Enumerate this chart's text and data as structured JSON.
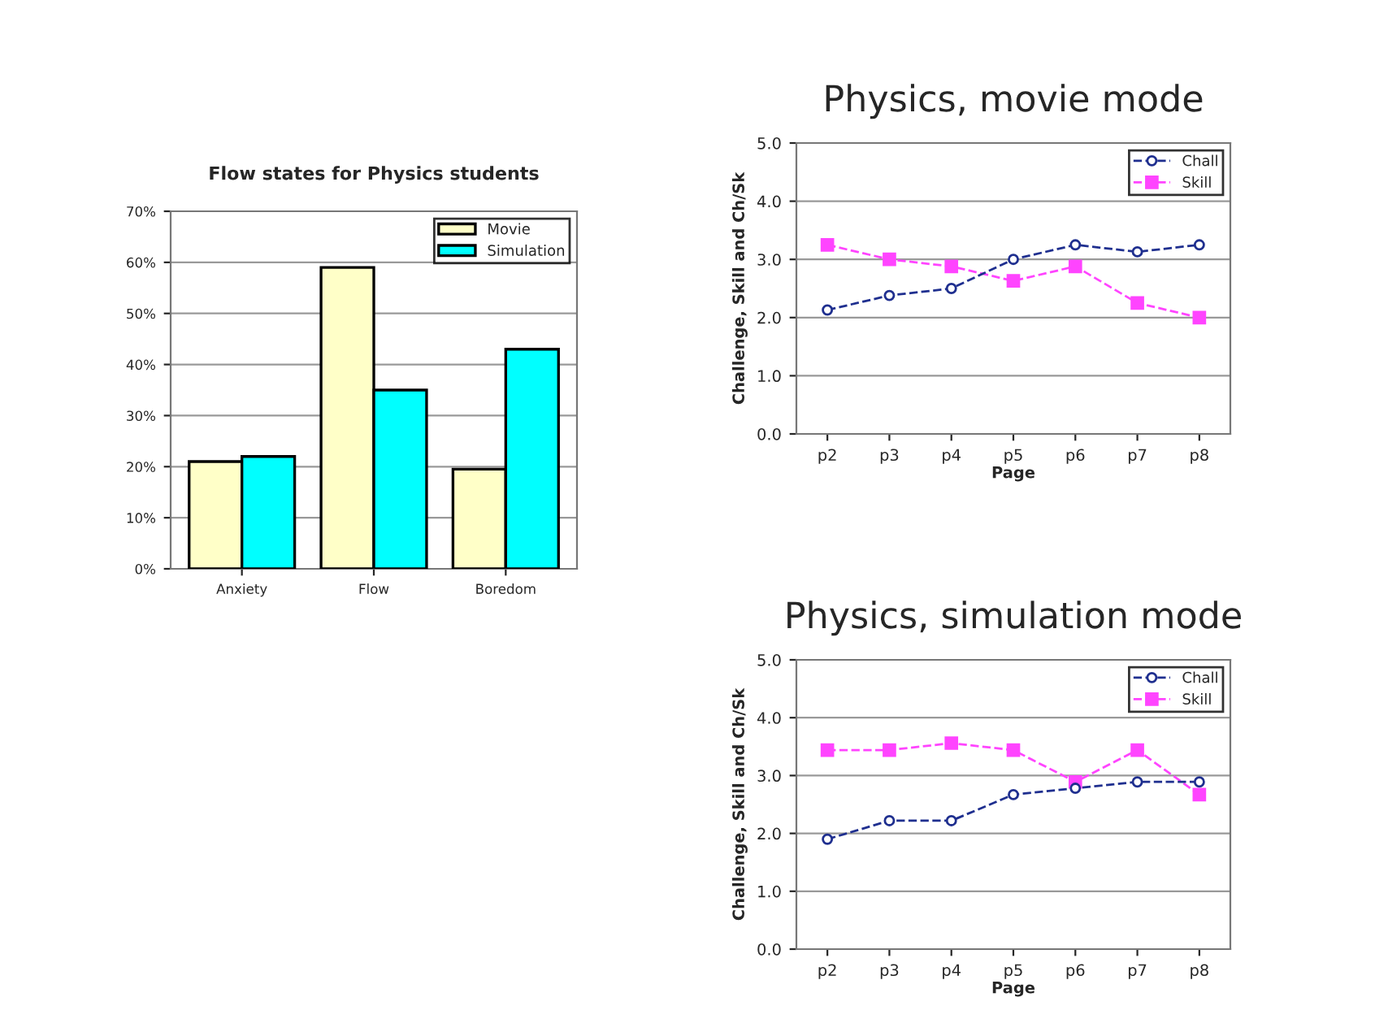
{
  "chart_data": [
    {
      "type": "bar",
      "title": "Flow states for Physics students",
      "categories": [
        "Anxiety",
        "Flow",
        "Boredom"
      ],
      "series": [
        {
          "name": "Movie",
          "color": "#ffffc8",
          "values": [
            21,
            59,
            19.5
          ]
        },
        {
          "name": "Simulation",
          "color": "#00ffff",
          "values": [
            22,
            35,
            43
          ]
        }
      ],
      "ylim": [
        0,
        70
      ],
      "yticks": [
        {
          "value": 0,
          "label": "0%"
        },
        {
          "value": 10,
          "label": "10%"
        },
        {
          "value": 20,
          "label": "20%"
        },
        {
          "value": 30,
          "label": "30%"
        },
        {
          "value": 40,
          "label": "40%"
        },
        {
          "value": 50,
          "label": "50%"
        },
        {
          "value": 60,
          "label": "60%"
        },
        {
          "value": 70,
          "label": "70%"
        }
      ],
      "grid": "y",
      "legend": "top right"
    },
    {
      "type": "line",
      "title": "Physics, movie mode",
      "xlabel": "Page",
      "ylabel": "Challenge, Skill and Ch/Sk",
      "categories": [
        "p2",
        "p3",
        "p4",
        "p5",
        "p6",
        "p7",
        "p8"
      ],
      "series": [
        {
          "name": "Chall",
          "color": "#1f2f8f",
          "marker": "circle",
          "values": [
            2.13,
            2.38,
            2.5,
            3.0,
            3.25,
            3.13,
            3.25
          ]
        },
        {
          "name": "Skill",
          "color": "#ff44ff",
          "marker": "square",
          "values": [
            3.25,
            3.0,
            2.88,
            2.63,
            2.88,
            2.25,
            2.0
          ]
        }
      ],
      "ylim": [
        0,
        5
      ],
      "yticks": [
        {
          "value": 0,
          "label": "0.0"
        },
        {
          "value": 1,
          "label": "1.0"
        },
        {
          "value": 2,
          "label": "2.0"
        },
        {
          "value": 3,
          "label": "3.0"
        },
        {
          "value": 4,
          "label": "4.0"
        },
        {
          "value": 5,
          "label": "5.0"
        }
      ],
      "grid": "y",
      "legend": "top right",
      "line_style": "dashed"
    },
    {
      "type": "line",
      "title": "Physics, simulation mode",
      "xlabel": "Page",
      "ylabel": "Challenge, Skill and Ch/Sk",
      "categories": [
        "p2",
        "p3",
        "p4",
        "p5",
        "p6",
        "p7",
        "p8"
      ],
      "series": [
        {
          "name": "Chall",
          "color": "#1f2f8f",
          "marker": "circle",
          "values": [
            1.9,
            2.22,
            2.22,
            2.67,
            2.78,
            2.89,
            2.89
          ]
        },
        {
          "name": "Skill",
          "color": "#ff44ff",
          "marker": "square",
          "values": [
            3.44,
            3.44,
            3.56,
            3.44,
            2.89,
            3.44,
            2.67
          ]
        }
      ],
      "ylim": [
        0,
        5
      ],
      "yticks": [
        {
          "value": 0,
          "label": "0.0"
        },
        {
          "value": 1,
          "label": "1.0"
        },
        {
          "value": 2,
          "label": "2.0"
        },
        {
          "value": 3,
          "label": "3.0"
        },
        {
          "value": 4,
          "label": "4.0"
        },
        {
          "value": 5,
          "label": "5.0"
        }
      ],
      "grid": "y",
      "legend": "top right",
      "line_style": "dashed"
    }
  ]
}
